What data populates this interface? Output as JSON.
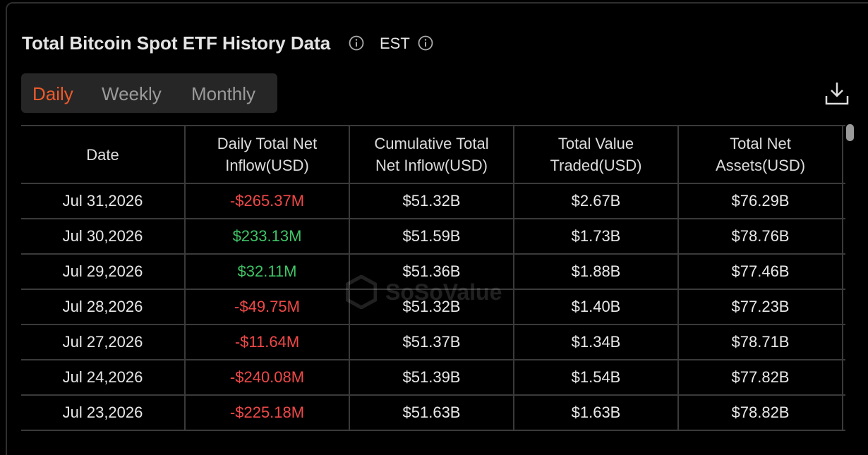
{
  "header": {
    "title": "Total Bitcoin Spot ETF History Data",
    "timezone": "EST"
  },
  "tabs": [
    "Daily",
    "Weekly",
    "Monthly"
  ],
  "active_tab": 0,
  "watermark": "SoSoValue",
  "table": {
    "columns": [
      "Date",
      "Daily Total Net Inflow(USD)",
      "Cumulative Total Net Inflow(USD)",
      "Total Value Traded(USD)",
      "Total Net Assets(USD)"
    ],
    "rows": [
      [
        "Jul 31,2026",
        "-$265.37M",
        "$51.32B",
        "$2.67B",
        "$76.29B"
      ],
      [
        "Jul 30,2026",
        "$233.13M",
        "$51.59B",
        "$1.73B",
        "$78.76B"
      ],
      [
        "Jul 29,2026",
        "$32.11M",
        "$51.36B",
        "$1.88B",
        "$77.46B"
      ],
      [
        "Jul 28,2026",
        "-$49.75M",
        "$51.32B",
        "$1.40B",
        "$77.23B"
      ],
      [
        "Jul 27,2026",
        "-$11.64M",
        "$51.37B",
        "$1.34B",
        "$78.71B"
      ],
      [
        "Jul 24,2026",
        "-$240.08M",
        "$51.39B",
        "$1.54B",
        "$77.82B"
      ],
      [
        "Jul 23,2026",
        "-$225.18M",
        "$51.63B",
        "$1.63B",
        "$78.82B"
      ]
    ]
  }
}
